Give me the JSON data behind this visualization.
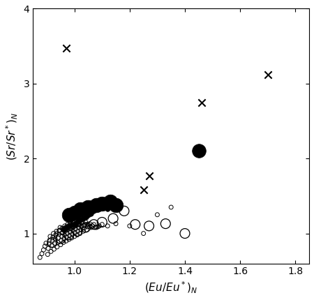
{
  "title": "",
  "xlabel": "(Eu/Eu*)_N",
  "ylabel": "(Sr/Sr*)_N",
  "xlim": [
    0.85,
    1.85
  ],
  "ylim": [
    0.6,
    4.0
  ],
  "xticks": [
    1.0,
    1.2,
    1.4,
    1.6,
    1.8
  ],
  "yticks": [
    1,
    2,
    3,
    4
  ],
  "background_color": "#ffffff",
  "open_circles_small": {
    "eu": [
      0.875,
      0.882,
      0.888,
      0.893,
      0.897,
      0.903,
      0.905,
      0.908,
      0.91,
      0.912,
      0.915,
      0.918,
      0.92,
      0.922,
      0.924,
      0.926,
      0.928,
      0.93,
      0.932,
      0.935,
      0.937,
      0.94,
      0.942,
      0.944,
      0.946,
      0.948,
      0.95,
      0.952,
      0.954,
      0.956,
      0.958,
      0.96,
      0.962,
      0.964,
      0.966,
      0.968,
      0.97,
      0.972,
      0.974,
      0.976,
      0.978,
      0.98,
      0.982,
      0.984,
      0.986,
      0.988,
      0.99,
      0.992,
      0.994,
      0.996,
      0.998,
      1.0,
      1.002,
      1.004,
      1.006,
      1.008,
      1.01,
      1.012,
      1.015,
      1.018,
      1.02,
      1.023,
      1.026,
      1.029,
      1.032,
      1.035,
      1.038,
      1.041,
      1.044,
      1.047,
      1.05,
      1.055,
      1.06,
      1.065,
      1.07,
      1.08,
      1.09,
      1.1,
      1.12,
      1.15,
      1.2,
      1.25,
      1.3,
      1.35,
      0.935,
      0.945,
      0.955,
      0.965,
      0.975,
      0.985,
      0.995,
      1.005,
      1.015,
      1.025,
      1.035,
      1.045,
      1.055,
      1.065,
      1.075,
      1.085
    ],
    "sr": [
      0.68,
      0.73,
      0.78,
      0.83,
      0.87,
      0.72,
      0.8,
      0.86,
      0.91,
      0.96,
      0.76,
      0.84,
      0.9,
      0.95,
      1.0,
      0.79,
      0.87,
      0.93,
      0.98,
      1.03,
      0.82,
      0.88,
      0.94,
      0.99,
      1.04,
      1.08,
      0.85,
      0.91,
      0.96,
      1.01,
      1.06,
      0.88,
      0.93,
      0.98,
      1.03,
      1.08,
      0.9,
      0.95,
      1.0,
      1.05,
      1.1,
      0.92,
      0.97,
      1.02,
      1.07,
      1.12,
      0.94,
      0.99,
      1.04,
      1.09,
      1.14,
      0.96,
      1.01,
      1.06,
      1.11,
      1.16,
      0.98,
      1.03,
      1.08,
      1.13,
      1.0,
      1.05,
      1.1,
      1.15,
      1.03,
      1.07,
      1.11,
      1.15,
      1.05,
      1.09,
      1.12,
      1.13,
      1.08,
      1.1,
      1.12,
      1.08,
      1.1,
      1.12,
      1.1,
      1.13,
      1.1,
      1.0,
      1.25,
      1.35,
      1.0,
      1.04,
      1.07,
      1.1,
      1.12,
      1.14,
      1.08,
      1.1,
      1.12,
      1.14,
      1.1,
      1.12,
      1.09,
      1.1,
      1.08,
      1.09
    ],
    "size": 18,
    "color": "none",
    "edgecolor": "#000000",
    "linewidth": 0.7
  },
  "open_circles_medium": {
    "eu": [
      0.92,
      0.95,
      0.98,
      1.01,
      1.04,
      1.07,
      1.1,
      1.14,
      1.18,
      1.22,
      1.27,
      1.33,
      1.4
    ],
    "sr": [
      0.88,
      0.93,
      0.98,
      1.03,
      1.08,
      1.12,
      1.15,
      1.2,
      1.3,
      1.12,
      1.1,
      1.13,
      1.0
    ],
    "size": 100,
    "color": "none",
    "edgecolor": "#000000",
    "linewidth": 0.9
  },
  "filled_circles_small": {
    "eu": [
      0.96,
      0.97,
      0.98,
      0.99,
      1.0,
      1.01,
      1.02,
      1.03,
      1.04,
      1.05,
      1.06,
      1.07,
      1.08,
      1.09,
      1.1,
      1.11,
      1.12
    ],
    "sr": [
      1.05,
      1.08,
      1.1,
      1.12,
      1.13,
      1.15,
      1.18,
      1.2,
      1.22,
      1.25,
      1.27,
      1.3,
      1.32,
      1.33,
      1.35,
      1.36,
      1.33
    ],
    "size": 30,
    "color": "#000000",
    "edgecolor": "#000000",
    "linewidth": 0.5
  },
  "filled_circles_large": {
    "eu": [
      0.98,
      1.0,
      1.02,
      1.05,
      1.08,
      1.1,
      1.13,
      1.15
    ],
    "sr": [
      1.25,
      1.28,
      1.32,
      1.35,
      1.38,
      1.4,
      1.42,
      1.38
    ],
    "size": 220,
    "color": "#000000",
    "edgecolor": "#000000",
    "linewidth": 0.5
  },
  "filled_circle_isolated": {
    "eu": [
      1.45
    ],
    "sr": [
      2.1
    ],
    "size": 200,
    "color": "#000000",
    "edgecolor": "#000000",
    "linewidth": 0.5
  },
  "x_markers": {
    "eu": [
      0.97,
      1.25,
      1.27,
      1.46,
      1.7
    ],
    "sr": [
      3.47,
      1.58,
      1.77,
      2.75,
      3.12
    ],
    "size": 55,
    "color": "#000000",
    "marker": "x",
    "linewidth": 1.5
  }
}
